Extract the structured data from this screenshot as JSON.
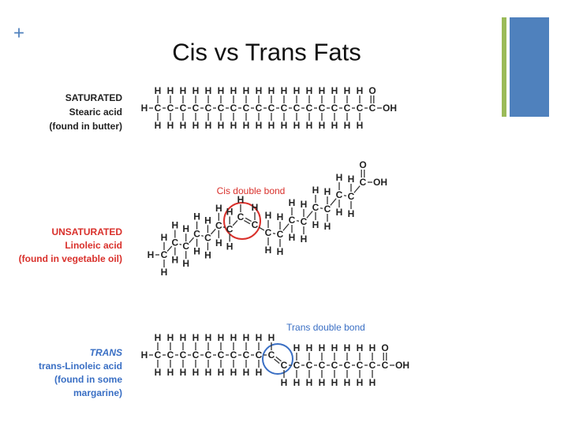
{
  "slide": {
    "plus": "+",
    "title": "Cis vs Trans Fats",
    "saturated": {
      "label": "SATURATED",
      "name": "Stearic acid",
      "source": "(found in butter)"
    },
    "unsaturated": {
      "label": "UNSATURATED",
      "name": "Linoleic acid",
      "source": "(found in vegetable oil)",
      "bond_label": "Cis double bond"
    },
    "trans": {
      "label": "TRANS",
      "name": "trans-Linoleic acid",
      "source_1": "(found in some",
      "source_2": "margarine)",
      "bond_label": "Trans double bond"
    },
    "atoms": {
      "carbon": "C",
      "hydrogen": "H",
      "oxygen": "O",
      "hydroxyl": "OH"
    }
  }
}
